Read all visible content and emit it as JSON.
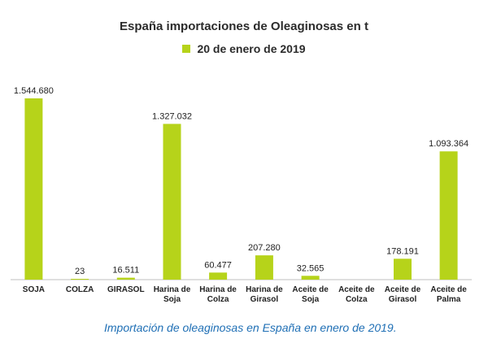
{
  "chart_data": {
    "type": "bar",
    "title": "España importaciones de Oleaginosas en t",
    "legend": {
      "position": "top",
      "entries": [
        "20 de enero de 2019"
      ]
    },
    "categories": [
      [
        "SOJA"
      ],
      [
        "COLZA"
      ],
      [
        "GIRASOL"
      ],
      [
        "Harina de",
        "Soja"
      ],
      [
        "Harina de",
        "Colza"
      ],
      [
        "Harina de",
        "Girasol"
      ],
      [
        "Aceite de",
        "Soja"
      ],
      [
        "Aceite de",
        "Colza"
      ],
      [
        "Aceite de",
        "Girasol"
      ],
      [
        "Aceite de",
        "Palma"
      ]
    ],
    "series": [
      {
        "name": "20 de enero de 2019",
        "values": [
          1544680,
          23,
          16511,
          1327032,
          60477,
          207280,
          32565,
          null,
          178191,
          1093364
        ],
        "labels": [
          "1.544.680",
          "23",
          "16.511",
          "1.327.032",
          "60.477",
          "207.280",
          "32.565",
          "",
          "178.191",
          "1.093.364"
        ]
      }
    ],
    "ylim": [
      0,
      1544680
    ],
    "grid": false,
    "bar_color": "#b6d31a"
  },
  "caption": "Importación de oleaginosas en España en enero de 2019."
}
